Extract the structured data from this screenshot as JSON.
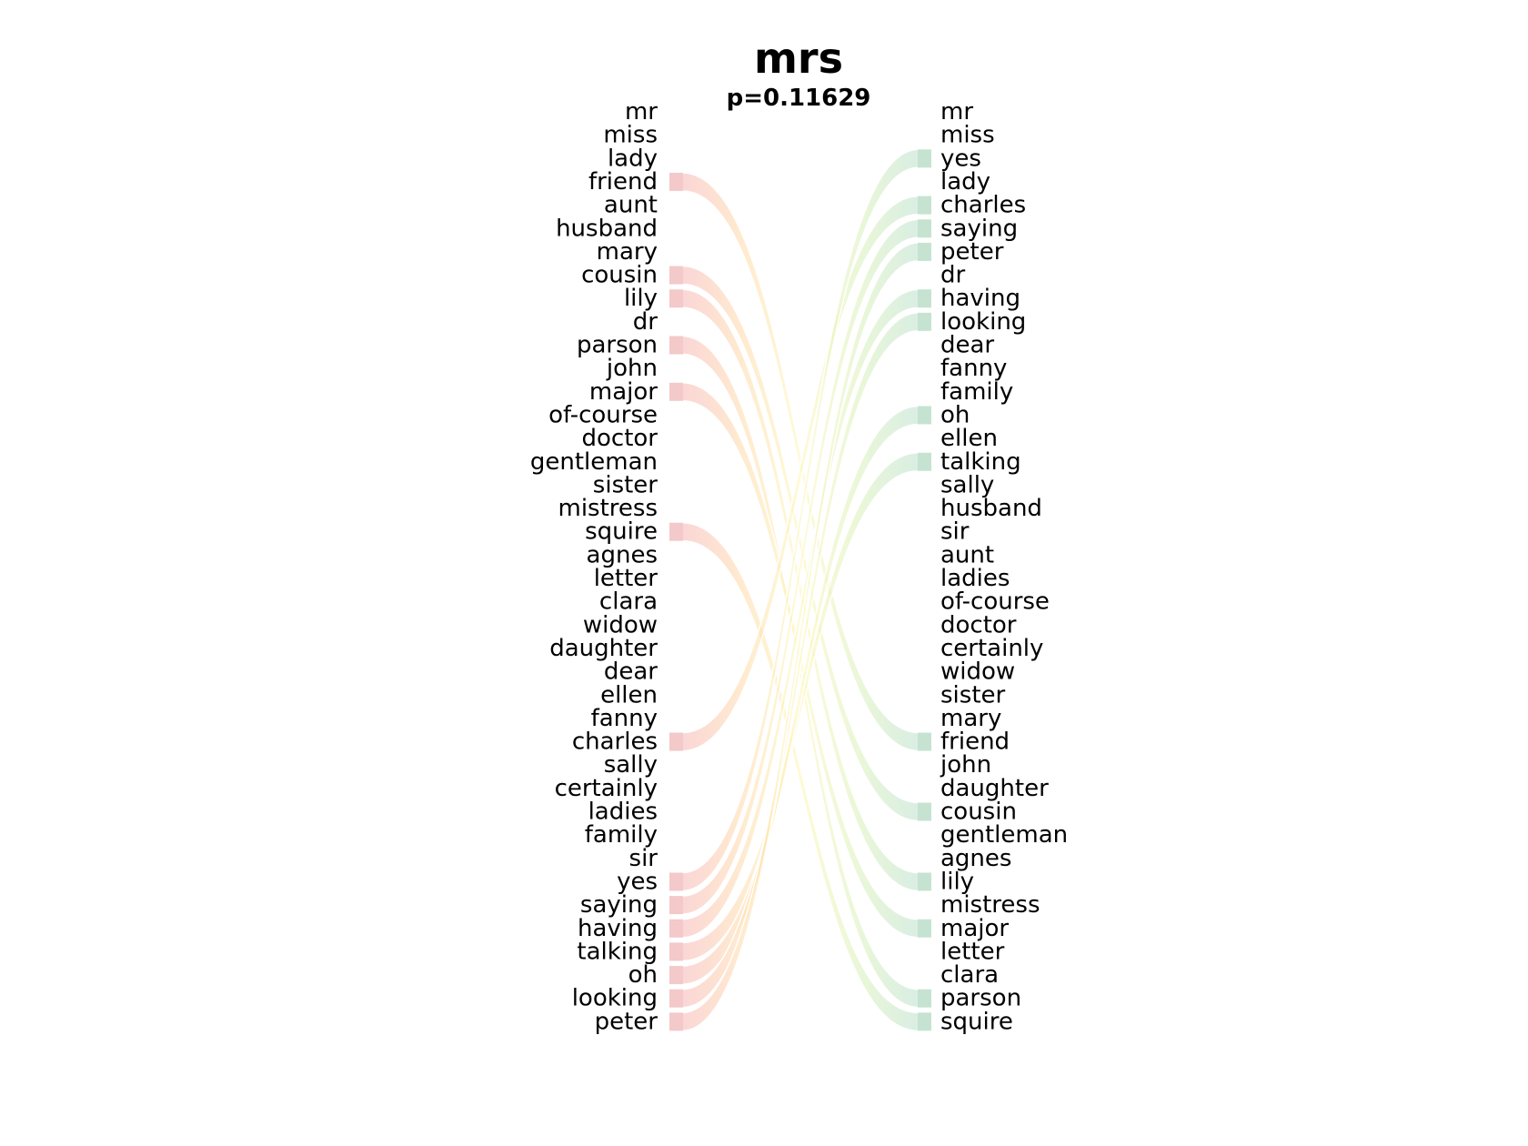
{
  "title": "mrs",
  "subtitle": "p=0.11629",
  "colors": {
    "left_tab": "#f3c9c9",
    "right_tab": "#c6e3d2",
    "gradient": [
      "#f6b4b4",
      "#ffd9a8",
      "#fdf6b4",
      "#d9f0b8",
      "#b9e0cc"
    ]
  },
  "chart_data": {
    "type": "slope",
    "left_words": [
      "mr",
      "miss",
      "lady",
      "friend",
      "aunt",
      "husband",
      "mary",
      "cousin",
      "lily",
      "dr",
      "parson",
      "john",
      "major",
      "of-course",
      "doctor",
      "gentleman",
      "sister",
      "mistress",
      "squire",
      "agnes",
      "letter",
      "clara",
      "widow",
      "daughter",
      "dear",
      "ellen",
      "fanny",
      "charles",
      "sally",
      "certainly",
      "ladies",
      "family",
      "sir",
      "yes",
      "saying",
      "having",
      "talking",
      "oh",
      "looking",
      "peter"
    ],
    "right_words": [
      "mr",
      "miss",
      "yes",
      "lady",
      "charles",
      "saying",
      "peter",
      "dr",
      "having",
      "looking",
      "dear",
      "fanny",
      "family",
      "oh",
      "ellen",
      "talking",
      "sally",
      "husband",
      "sir",
      "aunt",
      "ladies",
      "of-course",
      "doctor",
      "certainly",
      "widow",
      "sister",
      "mary",
      "friend",
      "john",
      "daughter",
      "cousin",
      "gentleman",
      "agnes",
      "lily",
      "mistress",
      "major",
      "letter",
      "clara",
      "parson",
      "squire"
    ],
    "connections": [
      {
        "word": "friend",
        "from_rank": 4,
        "to_rank": 28
      },
      {
        "word": "cousin",
        "from_rank": 8,
        "to_rank": 31
      },
      {
        "word": "lily",
        "from_rank": 9,
        "to_rank": 34
      },
      {
        "word": "parson",
        "from_rank": 11,
        "to_rank": 39
      },
      {
        "word": "major",
        "from_rank": 13,
        "to_rank": 36
      },
      {
        "word": "squire",
        "from_rank": 19,
        "to_rank": 40
      },
      {
        "word": "charles",
        "from_rank": 28,
        "to_rank": 5
      },
      {
        "word": "yes",
        "from_rank": 34,
        "to_rank": 3
      },
      {
        "word": "saying",
        "from_rank": 35,
        "to_rank": 6
      },
      {
        "word": "having",
        "from_rank": 36,
        "to_rank": 9
      },
      {
        "word": "talking",
        "from_rank": 37,
        "to_rank": 16
      },
      {
        "word": "oh",
        "from_rank": 38,
        "to_rank": 14
      },
      {
        "word": "looking",
        "from_rank": 39,
        "to_rank": 10
      },
      {
        "word": "peter",
        "from_rank": 40,
        "to_rank": 7
      }
    ]
  }
}
